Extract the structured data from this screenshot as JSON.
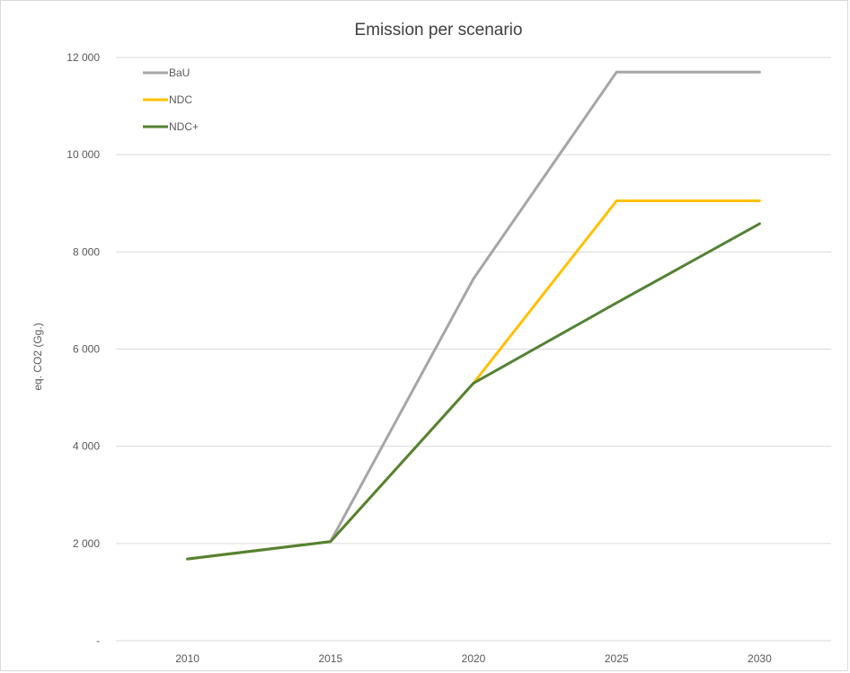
{
  "chart_data": {
    "type": "line",
    "title": "Emission per scenario",
    "xlabel": "",
    "ylabel": "eq. CO2 (Gg.)",
    "categories": [
      "2010",
      "2015",
      "2020",
      "2025",
      "2030"
    ],
    "ylim": [
      0,
      12000
    ],
    "yticks": [
      0,
      2000,
      4000,
      6000,
      8000,
      10000,
      12000
    ],
    "ytick_labels": [
      "-",
      "2 000",
      "4 000",
      "6 000",
      "8 000",
      "10 000",
      "12 000"
    ],
    "grid": "horizontal",
    "legend_position": "top-left",
    "series": [
      {
        "name": "BaU",
        "color": "#a6a6a6",
        "values": [
          1680,
          2040,
          7450,
          11700,
          11700
        ]
      },
      {
        "name": "NDC",
        "color": "#ffc000",
        "values": [
          1680,
          2040,
          5300,
          9050,
          9050
        ]
      },
      {
        "name": "NDC+",
        "color": "#548235",
        "values": [
          1680,
          2040,
          5300,
          6950,
          8580
        ]
      }
    ]
  }
}
